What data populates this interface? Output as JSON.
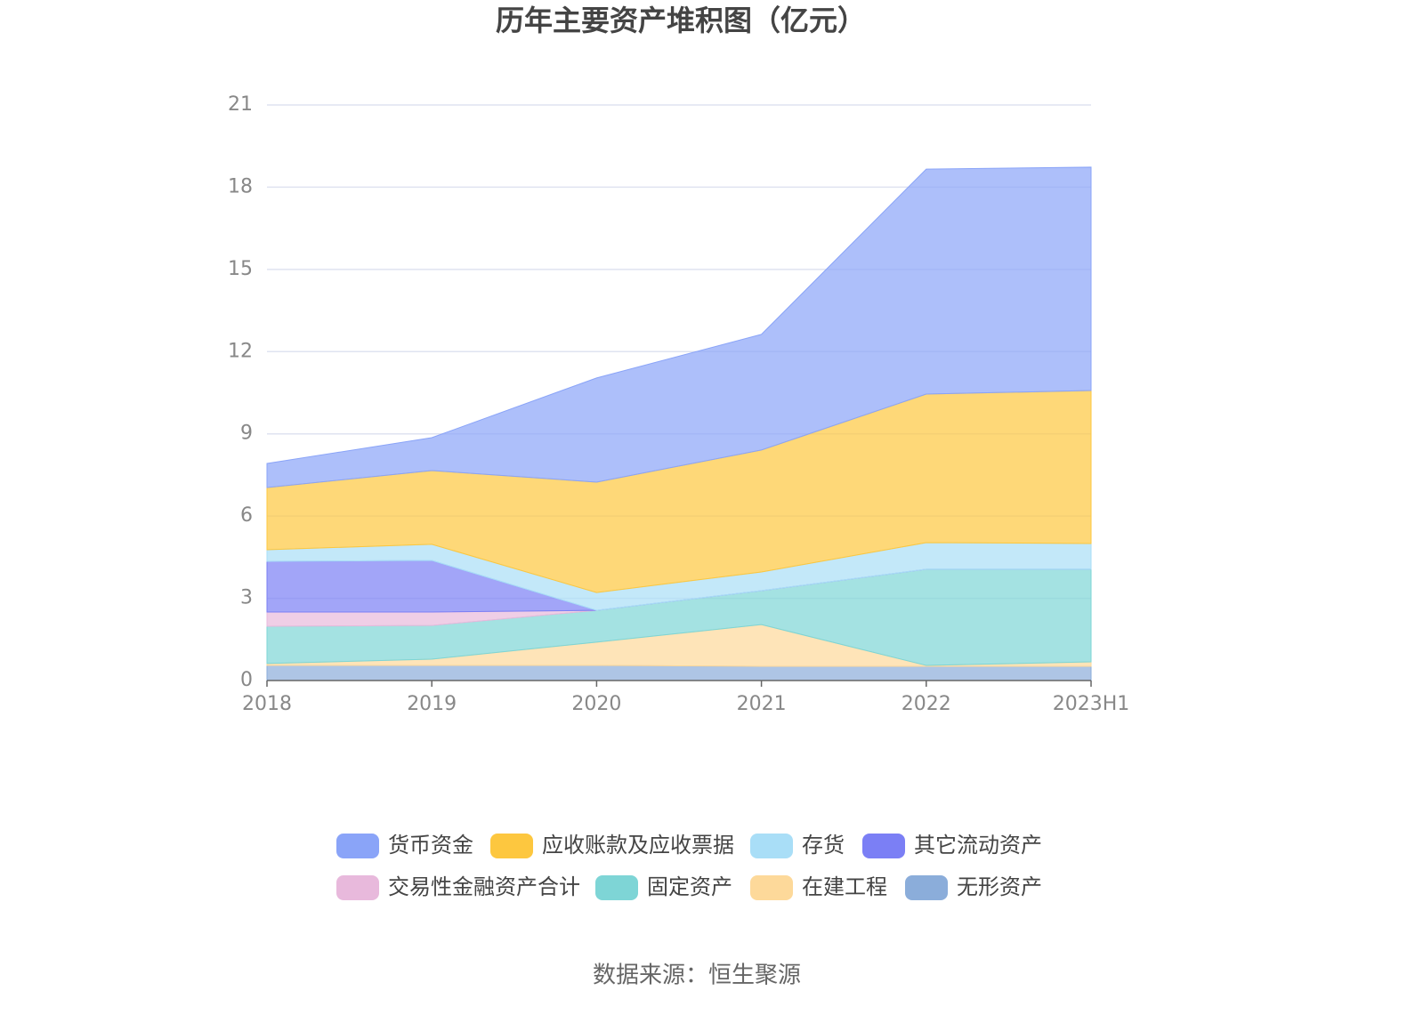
{
  "chart_data": {
    "type": "stacked_area",
    "title": "历年主要资产堆积图（亿元）",
    "source": "数据来源：恒生聚源",
    "categories": [
      "2018",
      "2019",
      "2020",
      "2021",
      "2022",
      "2023H1"
    ],
    "ylim": [
      0,
      21
    ],
    "yticks": [
      0,
      3,
      6,
      9,
      12,
      15,
      18,
      21
    ],
    "grid": true,
    "series": [
      {
        "name": "货币资金",
        "color": "#8aa4f8",
        "values": [
          0.88,
          1.2,
          3.8,
          4.22,
          8.21,
          8.15
        ]
      },
      {
        "name": "应收账款及应收票据",
        "color": "#fdc73f",
        "values": [
          2.27,
          2.69,
          4.03,
          4.45,
          5.42,
          5.58
        ]
      },
      {
        "name": "存货",
        "color": "#a9def7",
        "values": [
          0.42,
          0.59,
          0.65,
          0.68,
          0.97,
          0.94
        ]
      },
      {
        "name": "其它流动资产",
        "color": "#7b7ff5",
        "values": [
          1.85,
          1.88,
          0,
          0,
          0,
          0
        ]
      },
      {
        "name": "交易性金融资产合计",
        "color": "#e8b9dc",
        "values": [
          0.52,
          0.49,
          0,
          0,
          0,
          0
        ]
      },
      {
        "name": "固定资产",
        "color": "#7ed5d6",
        "values": [
          1.36,
          1.23,
          1.16,
          1.24,
          3.51,
          3.38
        ]
      },
      {
        "name": "在建工程",
        "color": "#fdd99a",
        "values": [
          0.07,
          0.23,
          0.85,
          1.52,
          0.03,
          0.16
        ]
      },
      {
        "name": "无形资产",
        "color": "#8badda",
        "values": [
          0.55,
          0.55,
          0.55,
          0.52,
          0.52,
          0.52
        ]
      }
    ]
  }
}
